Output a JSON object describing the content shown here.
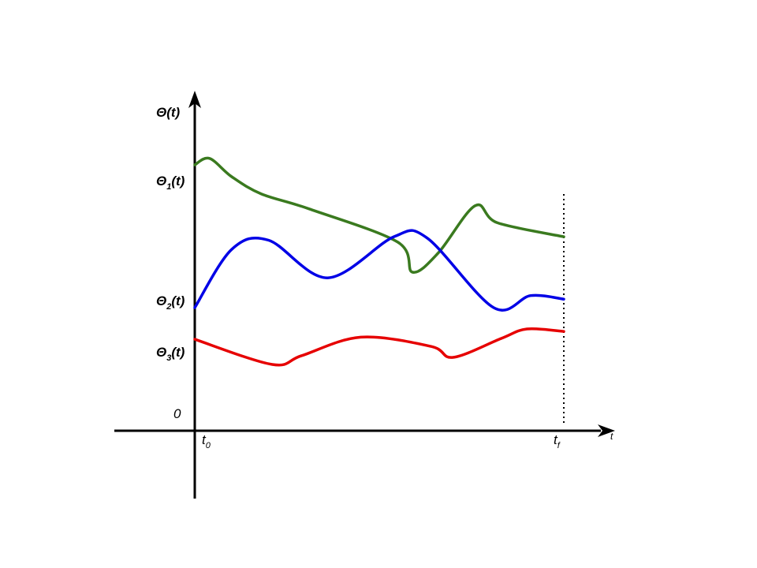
{
  "chart_data": {
    "type": "line",
    "y_axis_label": "Θ(t)",
    "x_axis_label": "t",
    "y_tick_zero": "0",
    "x_ticks": [
      {
        "main": "t",
        "sub": "0"
      },
      {
        "main": "t",
        "sub": "f"
      }
    ],
    "y_markers": [
      {
        "main": "Θ",
        "sub": "1",
        "tail": "(t)"
      },
      {
        "main": "Θ",
        "sub": "2",
        "tail": "(t)"
      },
      {
        "main": "Θ",
        "sub": "3",
        "tail": "(t)"
      }
    ],
    "x_range": [
      0,
      1
    ],
    "series": [
      {
        "color": "#3a7a1f",
        "points": [
          [
            0.0,
            1.0
          ],
          [
            0.04,
            1.06
          ],
          [
            0.1,
            0.89
          ],
          [
            0.18,
            0.73
          ],
          [
            0.31,
            0.59
          ],
          [
            0.55,
            0.28
          ],
          [
            0.59,
            0.0
          ],
          [
            0.66,
            0.18
          ],
          [
            0.76,
            0.62
          ],
          [
            0.82,
            0.46
          ],
          [
            1.0,
            0.33
          ]
        ]
      },
      {
        "color": "#0000e6",
        "points": [
          [
            0.0,
            0.0
          ],
          [
            0.1,
            0.82
          ],
          [
            0.2,
            0.95
          ],
          [
            0.36,
            0.42
          ],
          [
            0.54,
            1.0
          ],
          [
            0.63,
            0.98
          ],
          [
            0.81,
            0.0
          ],
          [
            0.91,
            0.17
          ],
          [
            1.0,
            0.12
          ]
        ]
      },
      {
        "color": "#e60000",
        "points": [
          [
            0.0,
            0.71
          ],
          [
            0.21,
            0.0
          ],
          [
            0.29,
            0.25
          ],
          [
            0.45,
            0.77
          ],
          [
            0.64,
            0.51
          ],
          [
            0.7,
            0.2
          ],
          [
            0.83,
            0.73
          ],
          [
            0.9,
            1.0
          ],
          [
            1.0,
            0.93
          ]
        ]
      }
    ],
    "grid": false,
    "legend": "none"
  }
}
